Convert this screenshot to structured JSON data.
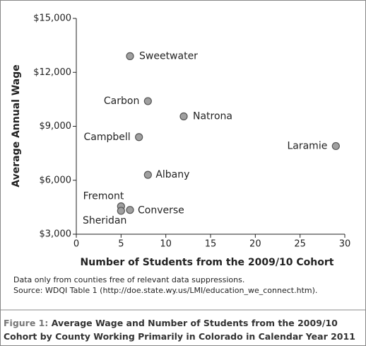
{
  "chart_data": {
    "type": "scatter",
    "x_label": "Number of Students from the 2009/10 Cohort",
    "y_label": "Average Annual Wage",
    "points": [
      {
        "label": "Sweetwater",
        "x": 6,
        "y": 12900
      },
      {
        "label": "Carbon",
        "x": 8,
        "y": 10400
      },
      {
        "label": "Natrona",
        "x": 12,
        "y": 9550
      },
      {
        "label": "Campbell",
        "x": 7,
        "y": 8400
      },
      {
        "label": "Laramie",
        "x": 29,
        "y": 7900
      },
      {
        "label": "Albany",
        "x": 8,
        "y": 6300
      },
      {
        "label": "Fremont",
        "x": 5,
        "y": 4550
      },
      {
        "label": "Sheridan",
        "x": 5,
        "y": 4300
      },
      {
        "label": "Converse",
        "x": 6,
        "y": 4350
      }
    ],
    "color": "#a0a0a0",
    "xlim": [
      0,
      30
    ],
    "xticks": [
      0,
      5,
      10,
      15,
      20,
      25,
      30
    ],
    "ylim": [
      3000,
      15000
    ],
    "yticks": [
      {
        "value": 3000,
        "label": "$3,000"
      },
      {
        "value": 6000,
        "label": "$6,000"
      },
      {
        "value": 9000,
        "label": "$9,000"
      },
      {
        "value": 12000,
        "label": "$12,000"
      },
      {
        "value": 15000,
        "label": "$15,000"
      }
    ],
    "notes": [
      "Data only from counties free of relevant data suppressions.",
      "Source: WDQI Table 1 (http://doe.state.wy.us/LMI/education_we_connect.htm)."
    ]
  },
  "caption": {
    "label": "Figure 1:",
    "text": "Average Wage and Number of Students from the 2009/10 Cohort by County Working Primarily in Colorado in Calendar Year 2011"
  }
}
